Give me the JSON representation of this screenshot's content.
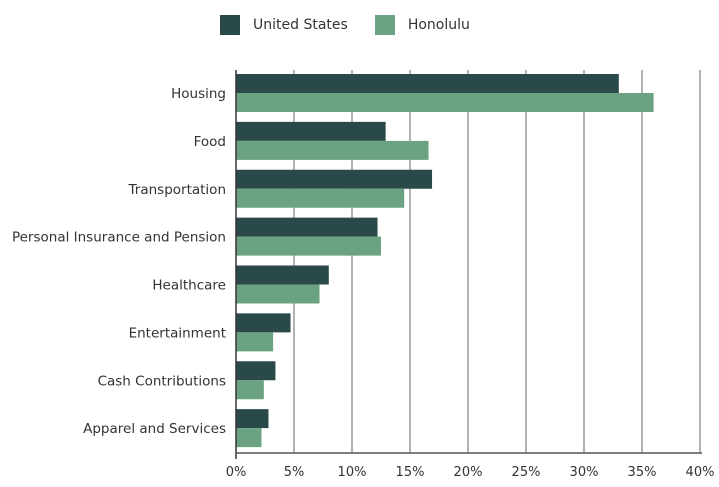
{
  "chart_data": {
    "type": "bar",
    "orientation": "horizontal",
    "title": "",
    "xlabel": "",
    "ylabel": "",
    "xlim": [
      0,
      40
    ],
    "x_ticks": [
      "0%",
      "5%",
      "10%",
      "15%",
      "20%",
      "25%",
      "30%",
      "35%",
      "40%"
    ],
    "x_tick_values": [
      0,
      5,
      10,
      15,
      20,
      25,
      30,
      35,
      40
    ],
    "grid": "vertical",
    "legend_position": "top",
    "categories": [
      "Housing",
      "Food",
      "Transportation",
      "Personal Insurance and Pension",
      "Healthcare",
      "Entertainment",
      "Cash Contributions",
      "Apparel and Services"
    ],
    "series": [
      {
        "name": "United States",
        "color": "#2a4a4a",
        "values": [
          33.0,
          12.9,
          16.9,
          12.2,
          8.0,
          4.7,
          3.4,
          2.8
        ]
      },
      {
        "name": "Honolulu",
        "color": "#6ba382",
        "values": [
          36.0,
          16.6,
          14.5,
          12.5,
          7.2,
          3.2,
          2.4,
          2.2
        ]
      }
    ]
  }
}
